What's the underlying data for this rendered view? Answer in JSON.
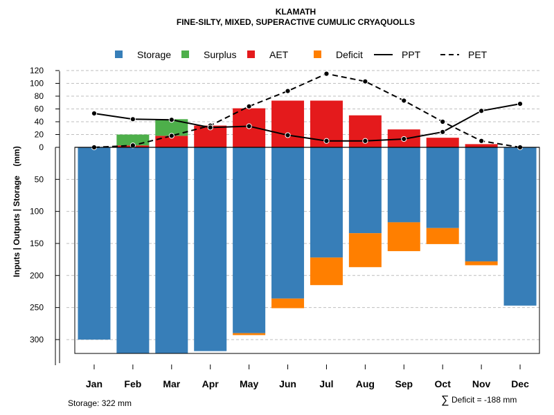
{
  "chart_data": {
    "type": "bar",
    "title": "KLAMATH",
    "subtitle": "FINE-SILTY, MIXED, SUPERACTIVE CUMULIC CRYAQUOLLS",
    "ylabel": "Inputs | Outputs | Storage    (mm)",
    "categories": [
      "Jan",
      "Feb",
      "Mar",
      "Apr",
      "May",
      "Jun",
      "Jul",
      "Aug",
      "Sep",
      "Oct",
      "Nov",
      "Dec"
    ],
    "upper_ticks": [
      "120",
      "100",
      "80",
      "60",
      "40",
      "20",
      "0"
    ],
    "upper_tick_values": [
      120,
      100,
      80,
      60,
      40,
      20,
      0
    ],
    "lower_ticks": [
      "50",
      "100",
      "150",
      "200",
      "250",
      "300"
    ],
    "lower_tick_values": [
      50,
      100,
      150,
      200,
      250,
      300
    ],
    "ylim_top": [
      0,
      120
    ],
    "ylim_bottom": [
      0,
      322
    ],
    "colors": {
      "storage": "#377EB8",
      "surplus": "#4DAF4A",
      "aet": "#E41A1C",
      "deficit": "#FF7F00",
      "line": "#000000",
      "grid": "#BEBEBE"
    },
    "legend": {
      "storage": "Storage",
      "surplus": "Surplus",
      "aet": "AET",
      "deficit": "Deficit",
      "ppt": "PPT",
      "pet": "PET"
    },
    "series": [
      {
        "name": "Storage",
        "values": [
          300,
          322,
          322,
          318,
          290,
          236,
          172,
          134,
          117,
          126,
          178,
          247
        ]
      },
      {
        "name": "Deficit",
        "values": [
          0,
          0,
          0,
          0,
          3,
          15,
          43,
          53,
          45,
          25,
          6,
          0
        ]
      },
      {
        "name": "AET",
        "values": [
          0,
          3,
          18,
          34,
          61,
          73,
          73,
          50,
          28,
          15,
          5,
          0
        ]
      },
      {
        "name": "Surplus",
        "values": [
          0,
          17,
          26,
          0,
          0,
          0,
          0,
          0,
          0,
          0,
          0,
          0
        ]
      },
      {
        "name": "PPT",
        "values": [
          53,
          44,
          43,
          31,
          33,
          19,
          10,
          10,
          13,
          24,
          57,
          68
        ]
      },
      {
        "name": "PET",
        "values": [
          0,
          3,
          18,
          34,
          64,
          88,
          115,
          103,
          73,
          40,
          10,
          0
        ]
      }
    ],
    "footer_storage": "Storage: 322 mm",
    "footer_deficit_symbol": "∑",
    "footer_deficit": "Deficit = -188 mm"
  }
}
